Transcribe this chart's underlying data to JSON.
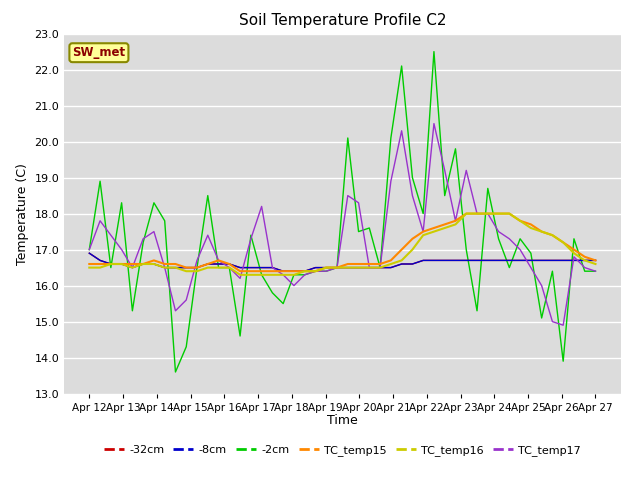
{
  "title": "Soil Temperature Profile C2",
  "xlabel": "Time",
  "ylabel": "Temperature (C)",
  "annotation": "SW_met",
  "ylim": [
    13.0,
    23.0
  ],
  "yticks": [
    13.0,
    14.0,
    15.0,
    16.0,
    17.0,
    18.0,
    19.0,
    20.0,
    21.0,
    22.0,
    23.0
  ],
  "xtick_labels": [
    "Apr 12",
    "Apr 13",
    "Apr 14",
    "Apr 15",
    "Apr 16",
    "Apr 17",
    "Apr 18",
    "Apr 19",
    "Apr 20",
    "Apr 21",
    "Apr 22",
    "Apr 23",
    "Apr 24",
    "Apr 25",
    "Apr 26",
    "Apr 27"
  ],
  "series_colors": {
    "neg32cm": "#cc0000",
    "neg8cm": "#0000cc",
    "neg2cm": "#00cc00",
    "TC_temp15": "#ff8800",
    "TC_temp16": "#cccc00",
    "TC_temp17": "#9933cc"
  },
  "series_labels": [
    "-32cm",
    "-8cm",
    "-2cm",
    "TC_temp15",
    "TC_temp16",
    "TC_temp17"
  ],
  "background_color": "#dcdcdc",
  "grid_color": "#ffffff",
  "neg2cm": [
    17.0,
    18.9,
    16.5,
    18.3,
    15.3,
    17.2,
    18.3,
    17.8,
    13.6,
    14.3,
    16.5,
    18.5,
    16.5,
    16.5,
    14.6,
    17.4,
    16.3,
    15.8,
    15.5,
    16.3,
    16.3,
    16.4,
    16.4,
    16.5,
    20.1,
    17.5,
    17.6,
    16.5,
    20.1,
    22.1,
    19.0,
    18.0,
    22.5,
    18.5,
    19.8,
    17.0,
    15.3,
    18.7,
    17.3,
    16.5,
    17.3,
    16.9,
    15.1,
    16.4,
    13.9,
    17.3,
    16.4,
    16.4
  ],
  "neg32cm": [
    16.9,
    16.7,
    16.6,
    16.6,
    16.5,
    16.6,
    16.6,
    16.5,
    16.5,
    16.5,
    16.5,
    16.6,
    16.6,
    16.6,
    16.5,
    16.5,
    16.5,
    16.5,
    16.4,
    16.4,
    16.4,
    16.5,
    16.5,
    16.5,
    16.5,
    16.5,
    16.5,
    16.5,
    16.5,
    16.6,
    16.6,
    16.7,
    16.7,
    16.7,
    16.7,
    16.7,
    16.7,
    16.7,
    16.7,
    16.7,
    16.7,
    16.7,
    16.7,
    16.7,
    16.7,
    16.7,
    16.7,
    16.7
  ],
  "neg8cm": [
    16.9,
    16.7,
    16.6,
    16.6,
    16.5,
    16.6,
    16.6,
    16.5,
    16.5,
    16.5,
    16.5,
    16.6,
    16.6,
    16.6,
    16.5,
    16.5,
    16.5,
    16.5,
    16.4,
    16.4,
    16.4,
    16.5,
    16.5,
    16.5,
    16.5,
    16.5,
    16.5,
    16.5,
    16.5,
    16.6,
    16.6,
    16.7,
    16.7,
    16.7,
    16.7,
    16.7,
    16.7,
    16.7,
    16.7,
    16.7,
    16.7,
    16.7,
    16.7,
    16.7,
    16.7,
    16.7,
    16.7,
    16.7
  ],
  "TC_temp15": [
    16.6,
    16.6,
    16.6,
    16.6,
    16.6,
    16.6,
    16.7,
    16.6,
    16.6,
    16.5,
    16.5,
    16.6,
    16.7,
    16.6,
    16.4,
    16.4,
    16.4,
    16.4,
    16.4,
    16.4,
    16.4,
    16.4,
    16.5,
    16.5,
    16.6,
    16.6,
    16.6,
    16.6,
    16.7,
    17.0,
    17.3,
    17.5,
    17.6,
    17.7,
    17.8,
    18.0,
    18.0,
    18.0,
    18.0,
    18.0,
    17.8,
    17.7,
    17.5,
    17.4,
    17.2,
    17.0,
    16.8,
    16.7
  ],
  "TC_temp16": [
    16.5,
    16.5,
    16.6,
    16.6,
    16.5,
    16.6,
    16.6,
    16.5,
    16.5,
    16.4,
    16.4,
    16.5,
    16.5,
    16.5,
    16.3,
    16.3,
    16.3,
    16.3,
    16.3,
    16.3,
    16.4,
    16.4,
    16.5,
    16.5,
    16.5,
    16.5,
    16.5,
    16.5,
    16.6,
    16.7,
    17.0,
    17.4,
    17.5,
    17.6,
    17.7,
    18.0,
    18.0,
    18.0,
    18.0,
    18.0,
    17.8,
    17.6,
    17.5,
    17.4,
    17.2,
    16.9,
    16.7,
    16.6
  ],
  "TC_temp17": [
    17.0,
    17.8,
    17.4,
    17.0,
    16.5,
    17.3,
    17.5,
    16.5,
    15.3,
    15.6,
    16.7,
    17.4,
    16.7,
    16.5,
    16.2,
    17.3,
    18.2,
    16.5,
    16.3,
    16.0,
    16.3,
    16.4,
    16.4,
    16.5,
    18.5,
    18.3,
    16.5,
    16.5,
    18.9,
    20.3,
    18.5,
    17.5,
    20.5,
    19.2,
    17.8,
    19.2,
    18.0,
    18.0,
    17.5,
    17.3,
    17.0,
    16.5,
    16.0,
    15.0,
    14.9,
    16.8,
    16.5,
    16.4
  ]
}
